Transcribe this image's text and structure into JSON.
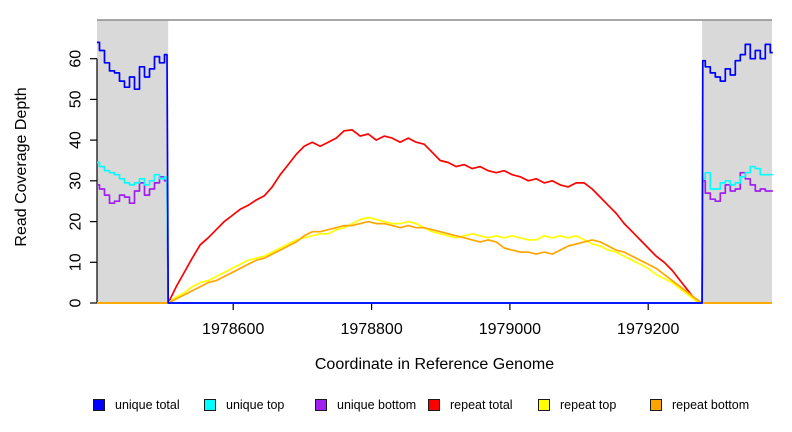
{
  "chart_data": {
    "type": "line",
    "title": "",
    "x_axis": {
      "label": "Coordinate in Reference Genome",
      "ticks": [
        1978600,
        1978800,
        1979000,
        1979200
      ],
      "range": [
        1978403,
        1979379
      ]
    },
    "y_axis": {
      "label": "Read Coverage Depth",
      "ticks": [
        0,
        10,
        20,
        30,
        40,
        50,
        60
      ],
      "range": [
        0,
        69.5
      ]
    },
    "legend_position": "bottom",
    "region_fill": "#D9D9D9",
    "frame_line_color": "#8C8C8C",
    "axis_color": "#000000",
    "shaded_regions": [
      {
        "name": "unique-region-left",
        "x": [
          1978403,
          1978506
        ]
      },
      {
        "name": "unique-region-right",
        "x": [
          1979278,
          1979379
        ]
      }
    ],
    "draw_order": [
      3,
      4,
      5,
      2,
      1,
      0
    ],
    "series": [
      {
        "name": "unique total",
        "color": "#0000FF",
        "segments": [
          {
            "x0": 1978403,
            "dx": 7.229,
            "step": true,
            "values": [
              64,
              62,
              59,
              57,
              56.5,
              54.5,
              53,
              55.5,
              52.5,
              58,
              55.5,
              57.5,
              60.5,
              59,
              61
            ]
          },
          {
            "x0": 1978506,
            "dx": 772,
            "values": [
              0,
              0
            ]
          },
          {
            "x0": 1979279,
            "dx": 7.229,
            "step": true,
            "values": [
              59.5,
              58,
              56.5,
              55.5,
              54.5,
              57.5,
              56,
              59.5,
              61,
              63.5,
              60,
              62,
              60,
              63.5,
              61.5
            ]
          }
        ]
      },
      {
        "name": "unique top",
        "color": "#00FFFF",
        "segments": [
          {
            "x0": 1978403,
            "dx": 7.229,
            "step": true,
            "values": [
              34.5,
              33.5,
              32.5,
              32,
              31.5,
              30.5,
              29.5,
              29,
              29.5,
              30.5,
              29,
              30,
              31.5,
              30.5,
              31
            ]
          },
          {
            "x0": 1978506,
            "dx": 772,
            "values": [
              0,
              0
            ]
          },
          {
            "x0": 1979279,
            "dx": 7.229,
            "step": true,
            "values": [
              30.5,
              32,
              28,
              28,
              29.5,
              30,
              29,
              29.5,
              31,
              32,
              33.5,
              33,
              31.5,
              31.5,
              31.5
            ]
          }
        ]
      },
      {
        "name": "unique bottom",
        "color": "#A020F0",
        "segments": [
          {
            "x0": 1978403,
            "dx": 7.229,
            "step": true,
            "values": [
              29,
              28,
              26.5,
              24.5,
              25,
              26.5,
              26,
              24.5,
              27.5,
              29.5,
              26.5,
              28,
              29.5,
              31,
              30
            ]
          },
          {
            "x0": 1978506,
            "dx": 772,
            "values": [
              0,
              0
            ]
          },
          {
            "x0": 1979279,
            "dx": 7.229,
            "step": true,
            "values": [
              30,
              27,
              25.5,
              25,
              27,
              29,
              27.5,
              28,
              32,
              30.5,
              29,
              27.5,
              28,
              27.5,
              27.5
            ]
          }
        ]
      },
      {
        "name": "repeat total",
        "color": "#FF0000",
        "segments": [
          {
            "x0": 1978403,
            "dx": 103,
            "values": [
              0,
              0
            ]
          },
          {
            "x0": 1978506,
            "dx": 11.566,
            "values": [
              0,
              4,
              7.5,
              11,
              14.3,
              16,
              18,
              20,
              21.5,
              23,
              24,
              25.3,
              26.3,
              28.5,
              31.5,
              34,
              36.5,
              38.5,
              39.5,
              38.5,
              39.5,
              40.5,
              42.3,
              42.5,
              41,
              41.5,
              40,
              41,
              40.5,
              39.5,
              40.5,
              39.5,
              39,
              37,
              35,
              34.5,
              33.5,
              34,
              33,
              33.5,
              32.5,
              32,
              32.5,
              31.5,
              31,
              30,
              30.5,
              29.5,
              30,
              29,
              28.5,
              29.5,
              29.5,
              28,
              26,
              24,
              22,
              19.5,
              17.5,
              15.5,
              13.5,
              11.5,
              10,
              8,
              5.5,
              3,
              0.5
            ]
          },
          {
            "x0": 1979278,
            "dx": 101,
            "values": [
              0,
              0
            ]
          }
        ]
      },
      {
        "name": "repeat top",
        "color": "#FFFF00",
        "segments": [
          {
            "x0": 1978403,
            "dx": 103,
            "values": [
              0,
              0
            ]
          },
          {
            "x0": 1978506,
            "dx": 11.566,
            "values": [
              0,
              1.5,
              2.5,
              4,
              5,
              5.5,
              6.5,
              7.5,
              8.5,
              9.5,
              10.5,
              11,
              11.5,
              12.5,
              13.5,
              14.5,
              15.5,
              16,
              16.5,
              17,
              17,
              18,
              18.5,
              19.5,
              20.5,
              21,
              20.5,
              20,
              19.5,
              19.5,
              20,
              19.5,
              18.5,
              17.5,
              17,
              16.5,
              16,
              16.5,
              17,
              16.5,
              16,
              16.5,
              16,
              16.5,
              16,
              15.5,
              15.5,
              16.5,
              16,
              16.5,
              16,
              16.5,
              15.5,
              14.5,
              14,
              13,
              12.5,
              11.5,
              10.5,
              9.5,
              8.5,
              7,
              6,
              5,
              3.5,
              2,
              0.5
            ]
          },
          {
            "x0": 1979278,
            "dx": 101,
            "values": [
              0,
              0
            ]
          }
        ]
      },
      {
        "name": "repeat bottom",
        "color": "#FFA500",
        "segments": [
          {
            "x0": 1978403,
            "dx": 103,
            "values": [
              0,
              0
            ]
          },
          {
            "x0": 1978506,
            "dx": 11.566,
            "values": [
              0,
              1,
              2,
              3,
              4,
              5,
              5.5,
              6.5,
              7.5,
              8.5,
              9.5,
              10.5,
              11,
              12,
              13,
              14,
              15,
              16.5,
              17.5,
              17.5,
              18,
              18.5,
              19,
              19,
              19.5,
              20,
              19.5,
              19.5,
              19,
              18.5,
              19,
              18.5,
              18.5,
              18,
              17.5,
              17,
              16.5,
              16,
              15.5,
              15,
              15.5,
              15,
              13.5,
              13,
              12.5,
              12.5,
              12,
              12.5,
              12,
              13,
              14,
              14.5,
              15,
              15.5,
              15,
              14,
              13,
              12.5,
              11.5,
              10.5,
              9.5,
              8.5,
              7,
              5.5,
              4,
              2.5,
              1
            ]
          },
          {
            "x0": 1979278,
            "dx": 101,
            "values": [
              0,
              0
            ]
          }
        ]
      }
    ]
  }
}
